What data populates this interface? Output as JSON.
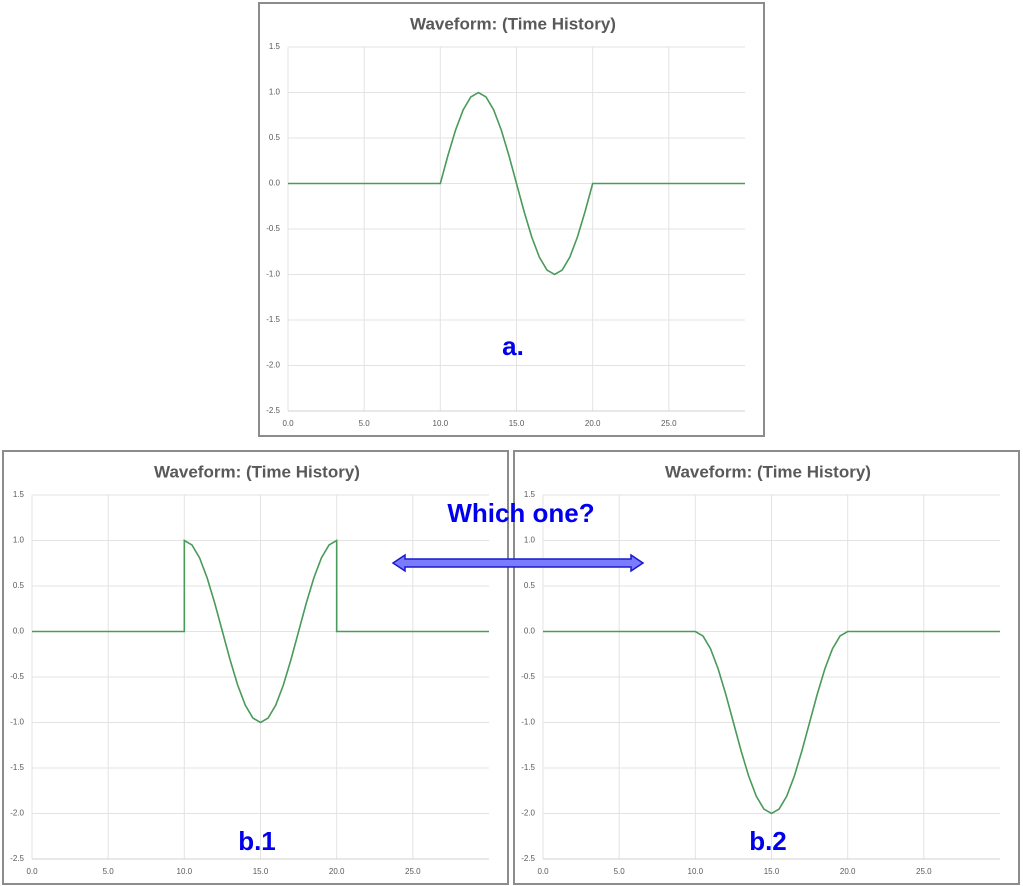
{
  "question": "Which one?",
  "chart_data": [
    {
      "type": "line",
      "title": "Waveform: (Time History)",
      "label": "a.",
      "color": "#4a9a5a",
      "grid": true,
      "xlim": [
        0,
        30
      ],
      "ylim": [
        -2.5,
        1.5
      ],
      "xticks": [
        {
          "value": 0,
          "label": "0.0"
        },
        {
          "value": 5,
          "label": "5.0"
        },
        {
          "value": 10,
          "label": "10.0"
        },
        {
          "value": 15,
          "label": "15.0"
        },
        {
          "value": 20,
          "label": "20.0"
        },
        {
          "value": 25,
          "label": "25.0"
        }
      ],
      "yticks": [
        1.5,
        {
          "value": 1,
          "label": "1.0"
        },
        0.5,
        {
          "value": 0,
          "label": "0.0"
        },
        -0.5,
        {
          "value": -1,
          "label": "-1.0"
        },
        -1.5,
        {
          "value": -2,
          "label": "-2.0"
        },
        -2.5
      ],
      "x": [
        0,
        10,
        10.5,
        11,
        11.5,
        12,
        12.5,
        13,
        13.5,
        14,
        14.5,
        15,
        15.5,
        16,
        16.5,
        17,
        17.5,
        18,
        18.5,
        19,
        19.5,
        20,
        30
      ],
      "values": [
        0,
        0,
        0.309,
        0.588,
        0.809,
        0.951,
        1,
        0.951,
        0.809,
        0.588,
        0.309,
        0,
        -0.309,
        -0.588,
        -0.809,
        -0.951,
        -1,
        -0.951,
        -0.809,
        -0.588,
        -0.309,
        0,
        0
      ]
    },
    {
      "type": "line",
      "title": "Waveform: (Time History)",
      "label": "b.1",
      "color": "#4a9a5a",
      "grid": true,
      "xlim": [
        0,
        30
      ],
      "ylim": [
        -2.5,
        1.5
      ],
      "xticks": [
        {
          "value": 0,
          "label": "0.0"
        },
        {
          "value": 5,
          "label": "5.0"
        },
        {
          "value": 10,
          "label": "10.0"
        },
        {
          "value": 15,
          "label": "15.0"
        },
        {
          "value": 20,
          "label": "20.0"
        },
        {
          "value": 25,
          "label": "25.0"
        }
      ],
      "yticks": [
        1.5,
        {
          "value": 1,
          "label": "1.0"
        },
        0.5,
        {
          "value": 0,
          "label": "0.0"
        },
        -0.5,
        {
          "value": -1,
          "label": "-1.0"
        },
        -1.5,
        {
          "value": -2,
          "label": "-2.0"
        },
        -2.5
      ],
      "x": [
        0,
        10,
        10,
        10.5,
        11,
        11.5,
        12,
        12.5,
        13,
        13.5,
        14,
        14.5,
        15,
        15.5,
        16,
        16.5,
        17,
        17.5,
        18,
        18.5,
        19,
        19.5,
        20,
        20,
        30
      ],
      "values": [
        0,
        0,
        1,
        0.951,
        0.809,
        0.588,
        0.309,
        0,
        -0.309,
        -0.588,
        -0.809,
        -0.951,
        -1,
        -0.951,
        -0.809,
        -0.588,
        -0.309,
        0,
        0.309,
        0.588,
        0.809,
        0.951,
        1,
        0,
        0
      ]
    },
    {
      "type": "line",
      "title": "Waveform: (Time History)",
      "label": "b.2",
      "color": "#4a9a5a",
      "grid": true,
      "xlim": [
        0,
        30
      ],
      "ylim": [
        -2.5,
        1.5
      ],
      "xticks": [
        {
          "value": 0,
          "label": "0.0"
        },
        {
          "value": 5,
          "label": "5.0"
        },
        {
          "value": 10,
          "label": "10.0"
        },
        {
          "value": 15,
          "label": "15.0"
        },
        {
          "value": 20,
          "label": "20.0"
        },
        {
          "value": 25,
          "label": "25.0"
        }
      ],
      "yticks": [
        1.5,
        {
          "value": 1,
          "label": "1.0"
        },
        0.5,
        {
          "value": 0,
          "label": "0.0"
        },
        -0.5,
        {
          "value": -1,
          "label": "-1.0"
        },
        -1.5,
        {
          "value": -2,
          "label": "-2.0"
        },
        -2.5
      ],
      "x": [
        0,
        10,
        10.5,
        11,
        11.5,
        12,
        12.5,
        13,
        13.5,
        14,
        14.5,
        15,
        15.5,
        16,
        16.5,
        17,
        17.5,
        18,
        18.5,
        19,
        19.5,
        20,
        30
      ],
      "values": [
        0,
        0,
        -0.049,
        -0.191,
        -0.412,
        -0.691,
        -1,
        -1.309,
        -1.588,
        -1.809,
        -1.951,
        -2,
        -1.951,
        -1.809,
        -1.588,
        -1.309,
        -1,
        -0.691,
        -0.412,
        -0.191,
        -0.049,
        0,
        0
      ]
    }
  ]
}
